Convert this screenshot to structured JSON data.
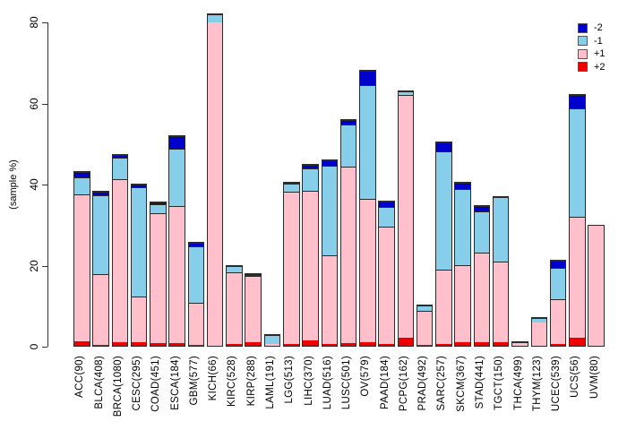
{
  "chart_data": {
    "type": "bar",
    "stacked": true,
    "title": "",
    "xlabel": "",
    "ylabel": "(sample %)",
    "ylim": [
      0,
      83
    ],
    "yticks": [
      0,
      20,
      40,
      60,
      80
    ],
    "grid": false,
    "legend_position": "top-right",
    "categories": [
      "ACC(90)",
      "BLCA(408)",
      "BRCA(1080)",
      "CESC(295)",
      "COAD(451)",
      "ESCA(184)",
      "GBM(577)",
      "KICH(66)",
      "KIRC(528)",
      "KIRP(288)",
      "LAML(191)",
      "LGG(513)",
      "LIHC(370)",
      "LUAD(516)",
      "LUSC(501)",
      "OV(579)",
      "PAAD(184)",
      "PCPG(162)",
      "PRAD(492)",
      "SARC(257)",
      "SKCM(367)",
      "STAD(441)",
      "TGCT(150)",
      "THCA(499)",
      "THYM(123)",
      "UCEC(539)",
      "UCS(56)",
      "UVM(80)"
    ],
    "stack_order_note": "series listed bottom-to-top of each stacked bar",
    "series": [
      {
        "name": "+2",
        "color": "#EE0000",
        "values": [
          1.2,
          0.2,
          0.8,
          0.8,
          0.6,
          0.6,
          0.3,
          0,
          0.5,
          0.8,
          0,
          0.4,
          1.3,
          0.5,
          0.7,
          1.0,
          0.4,
          1.9,
          0.2,
          0.5,
          1.0,
          1.0,
          0.8,
          0,
          0,
          0.5,
          1.9,
          0
        ]
      },
      {
        "name": "+1",
        "color": "#FFC0CB",
        "values": [
          36.5,
          17.8,
          40.7,
          11.4,
          32.5,
          34.2,
          10.4,
          80.3,
          18.1,
          16.8,
          0.6,
          38.1,
          37.4,
          22.0,
          43.9,
          35.5,
          29.5,
          60.6,
          8.8,
          18.5,
          19.1,
          22.4,
          20.2,
          0.9,
          6.1,
          11.3,
          30.2,
          30.0
        ]
      },
      {
        "name": "-1",
        "color": "#87CEEB",
        "values": [
          4.3,
          19.5,
          5.4,
          27.5,
          2.3,
          14.2,
          14.3,
          2.0,
          1.5,
          0.3,
          2.5,
          2.0,
          5.5,
          22.5,
          10.4,
          28.3,
          4.9,
          0.8,
          1.3,
          29.5,
          19.0,
          10.3,
          16.2,
          0.4,
          1.3,
          7.8,
          26.9,
          0
        ]
      },
      {
        "name": "-2",
        "color": "#0000CD",
        "values": [
          1.3,
          1.0,
          0.7,
          0.5,
          0.4,
          3.2,
          1.0,
          0,
          0,
          0.3,
          0,
          0.2,
          0.9,
          1.3,
          1.1,
          3.6,
          1.3,
          0,
          0,
          2.2,
          1.6,
          1.3,
          0,
          0,
          0,
          1.8,
          3.3,
          0
        ]
      }
    ],
    "legend": [
      {
        "label": "-2",
        "color": "#0000CD"
      },
      {
        "label": "-1",
        "color": "#87CEEB"
      },
      {
        "label": "+1",
        "color": "#FFC0CB"
      },
      {
        "label": "+2",
        "color": "#EE0000"
      }
    ]
  }
}
